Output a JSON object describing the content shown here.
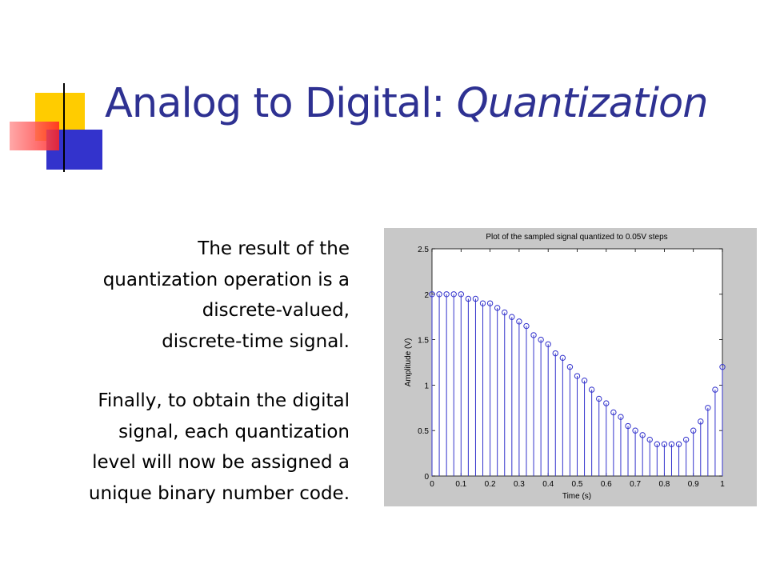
{
  "title": {
    "main": "Analog to Digital:",
    "emphasis": "Quantization"
  },
  "paragraphs": [
    [
      "The result of the",
      "quantization operation is a",
      "discrete-valued,",
      "discrete-time signal."
    ],
    [
      "Finally, to obtain the digital",
      "signal, each quantization",
      "level will now be assigned a",
      "unique binary number code."
    ]
  ],
  "chart_data": {
    "type": "stem",
    "title": "Plot of the sampled signal quantized to 0.05V steps",
    "x_label": "Time (s)",
    "y_label": "Amplitude (V)",
    "color": "#3333cc",
    "x": [
      0,
      0.025,
      0.05,
      0.075,
      0.1,
      0.125,
      0.15,
      0.175,
      0.2,
      0.225,
      0.25,
      0.275,
      0.3,
      0.325,
      0.35,
      0.375,
      0.4,
      0.425,
      0.45,
      0.475,
      0.5,
      0.525,
      0.55,
      0.575,
      0.6,
      0.625,
      0.65,
      0.675,
      0.7,
      0.725,
      0.75,
      0.775,
      0.8,
      0.825,
      0.85,
      0.875,
      0.9,
      0.925,
      0.95,
      0.975,
      1
    ],
    "values": [
      2,
      2,
      2,
      2,
      2,
      1.95,
      1.95,
      1.9,
      1.9,
      1.85,
      1.8,
      1.75,
      1.7,
      1.65,
      1.55,
      1.5,
      1.45,
      1.35,
      1.3,
      1.2,
      1.1,
      1.05,
      0.95,
      0.85,
      0.8,
      0.7,
      0.65,
      0.55,
      0.5,
      0.45,
      0.4,
      0.35,
      0.35,
      0.35,
      0.35,
      0.4,
      0.5,
      0.6,
      0.75,
      0.95,
      1.2
    ],
    "xlim": [
      0,
      1
    ],
    "xticks": [
      0,
      0.1,
      0.2,
      0.3,
      0.4,
      0.5,
      0.6,
      0.7,
      0.8,
      0.9,
      1
    ],
    "ylim": [
      0,
      2.5
    ],
    "yticks": [
      0,
      0.5,
      1,
      1.5,
      2,
      2.5
    ]
  }
}
